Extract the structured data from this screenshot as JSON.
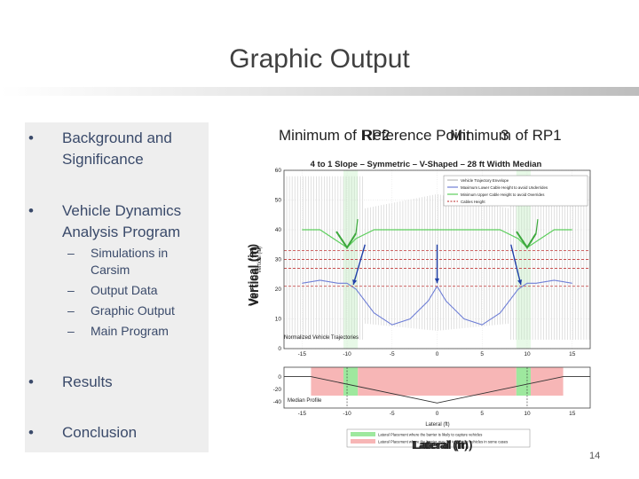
{
  "slide": {
    "title": "Graphic Output",
    "page_number": "14"
  },
  "outline": {
    "items": [
      {
        "label": "Background and",
        "label2": "Significance"
      },
      {
        "label": "Vehicle Dynamics",
        "label2": "Analysis Program"
      },
      {
        "label": "Results"
      },
      {
        "label": "Conclusion"
      }
    ],
    "sub_items": [
      {
        "label": "Simulations in",
        "label2": "Carsim"
      },
      {
        "label": "Output Data"
      },
      {
        "label": "Graphic Output"
      },
      {
        "label": "Main Program"
      }
    ]
  },
  "overlapping_text": {
    "a": "Minimum of RP2",
    "b": "Reference Point",
    "c": "Minimum of RP1",
    "d": "3"
  },
  "overlay_axes": {
    "ylabel_a": "Vertical (in)",
    "ylabel_b": "Vertical (ft)",
    "xlabel_a": "Lateral (ft)",
    "xlabel_b": "Lateral (in)"
  },
  "figure": {
    "title": "4 to 1 Slope – Symmetric – V-Shaped – 28 ft Width Median",
    "ylabel": "Vertical (in)",
    "xlabel": "Lateral (ft)",
    "inner_label": "Normalized Vehicle Trajectories",
    "profile_label": "Median Profile",
    "legend": [
      {
        "label": "Vehicle Trajectory Envelope",
        "color": "#b5b5b5"
      },
      {
        "label": "Maximum Lower Cable Height to avoid Underrides",
        "color": "#6f7fd6"
      },
      {
        "label": "Minimum Upper Cable Height to avoid Overrides",
        "color": "#5dce5d"
      },
      {
        "label": "Cables Height",
        "color": "#c85050"
      }
    ],
    "bottom_legend": [
      {
        "label": "Lateral Placement where the barrier is likely to capture vehicles",
        "color": "#9ee89e"
      },
      {
        "label": "Lateral Placement where the barrier may fail to capture vehicles in some cases",
        "color": "#f7b6b6"
      }
    ],
    "colors": {
      "blue_arrow": "#1f3fa8",
      "green_arrow": "#3ca83c"
    }
  },
  "chart_data": [
    {
      "type": "line",
      "title": "4 to 1 Slope – Symmetric – V-Shaped – 28 ft Width Median",
      "xlabel": "",
      "ylabel": "Vertical (in)",
      "xlim": [
        -17,
        17
      ],
      "ylim": [
        0,
        60
      ],
      "x_ticks": [
        -15,
        -10,
        -5,
        0,
        5,
        10,
        15
      ],
      "y_ticks": [
        0,
        10,
        20,
        30,
        40,
        50,
        60
      ],
      "grid": true,
      "legend_position": "top-right",
      "series": [
        {
          "name": "Maximum Lower Cable Height to avoid Underrides",
          "x": [
            -15,
            -13,
            -11,
            -10,
            -9,
            -7,
            -5,
            -3,
            -1,
            0,
            1,
            3,
            5,
            7,
            9,
            10,
            11,
            13,
            15
          ],
          "y": [
            22,
            23,
            22,
            22,
            20,
            12,
            8,
            10,
            16,
            21,
            16,
            10,
            8,
            12,
            20,
            22,
            22,
            23,
            22
          ]
        },
        {
          "name": "Minimum Upper Cable Height to avoid Overrides",
          "x": [
            -15,
            -13,
            -11,
            -10,
            -9,
            -7,
            -5,
            -3,
            -1,
            0,
            1,
            3,
            5,
            7,
            9,
            10,
            11,
            13,
            15
          ],
          "y": [
            40,
            40,
            36,
            34,
            37,
            40,
            40,
            40,
            40,
            40,
            40,
            40,
            40,
            40,
            37,
            34,
            36,
            40,
            40
          ]
        },
        {
          "name": "Cables Height",
          "x": [
            -17,
            17
          ],
          "y": [
            33,
            33
          ]
        },
        {
          "name": "Cables Height",
          "x": [
            -17,
            17
          ],
          "y": [
            30,
            30
          ]
        },
        {
          "name": "Cables Height",
          "x": [
            -17,
            17
          ],
          "y": [
            27,
            27
          ]
        },
        {
          "name": "Cables Height",
          "x": [
            -17,
            17
          ],
          "y": [
            21,
            21
          ]
        }
      ]
    },
    {
      "type": "line",
      "title": "",
      "xlabel": "Lateral (ft)",
      "ylabel": "",
      "xlim": [
        -17,
        17
      ],
      "ylim": [
        -50,
        15
      ],
      "x_ticks": [
        -15,
        -10,
        -5,
        0,
        5,
        10,
        15
      ],
      "y_ticks": [
        -40,
        -20,
        0
      ],
      "grid": false,
      "series": [
        {
          "name": "Median Profile",
          "x": [
            -17,
            -14,
            0,
            14,
            17
          ],
          "y": [
            0,
            0,
            -42,
            0,
            0
          ]
        }
      ]
    }
  ]
}
